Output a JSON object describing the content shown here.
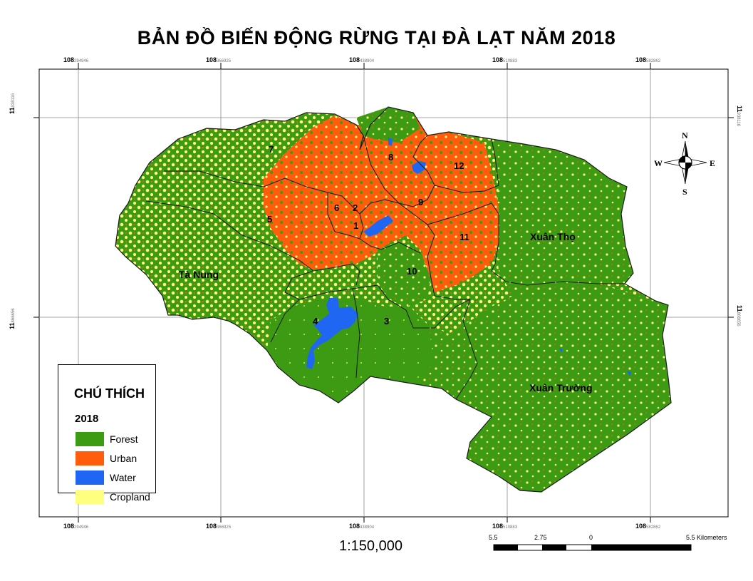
{
  "title": "BẢN ĐỒ BIẾN ĐỘNG RỪNG TẠI ĐÀ LẠT NĂM 2018",
  "colors": {
    "forest": "#3d9a13",
    "urban": "#ff5d0c",
    "water": "#1f66f2",
    "cropland": "#ffff7f"
  },
  "grid": {
    "lon_major": "108",
    "lon_minor": [
      "294946",
      "366925",
      "438904",
      "510883",
      "582862"
    ],
    "lat_major": "11",
    "lat_minor": [
      "938116",
      "866656"
    ]
  },
  "regions": {
    "r1": "1",
    "r2": "2",
    "r3": "3",
    "r4": "4",
    "r5": "5",
    "r6": "6",
    "r7": "7",
    "r8": "8",
    "r9": "9",
    "r10": "10",
    "r11": "11",
    "r12": "12",
    "ta_nung": "Tà Nung",
    "xuan_tho": "Xuân Thọ",
    "xuan_truong": "Xuân Trường"
  },
  "compass": {
    "n": "N",
    "s": "S",
    "e": "E",
    "w": "W"
  },
  "legend": {
    "heading": "CHÚ THÍCH",
    "year": "2018",
    "items": [
      {
        "label": "Forest",
        "color": "#3d9a13"
      },
      {
        "label": "Urban",
        "color": "#ff5d0c"
      },
      {
        "label": "Water",
        "color": "#1f66f2"
      },
      {
        "label": "Cropland",
        "color": "#ffff7f"
      }
    ]
  },
  "scale": {
    "ratio": "1:150,000",
    "labels": [
      "5.5",
      "2.75",
      "0",
      "5.5 Kilometers"
    ]
  }
}
